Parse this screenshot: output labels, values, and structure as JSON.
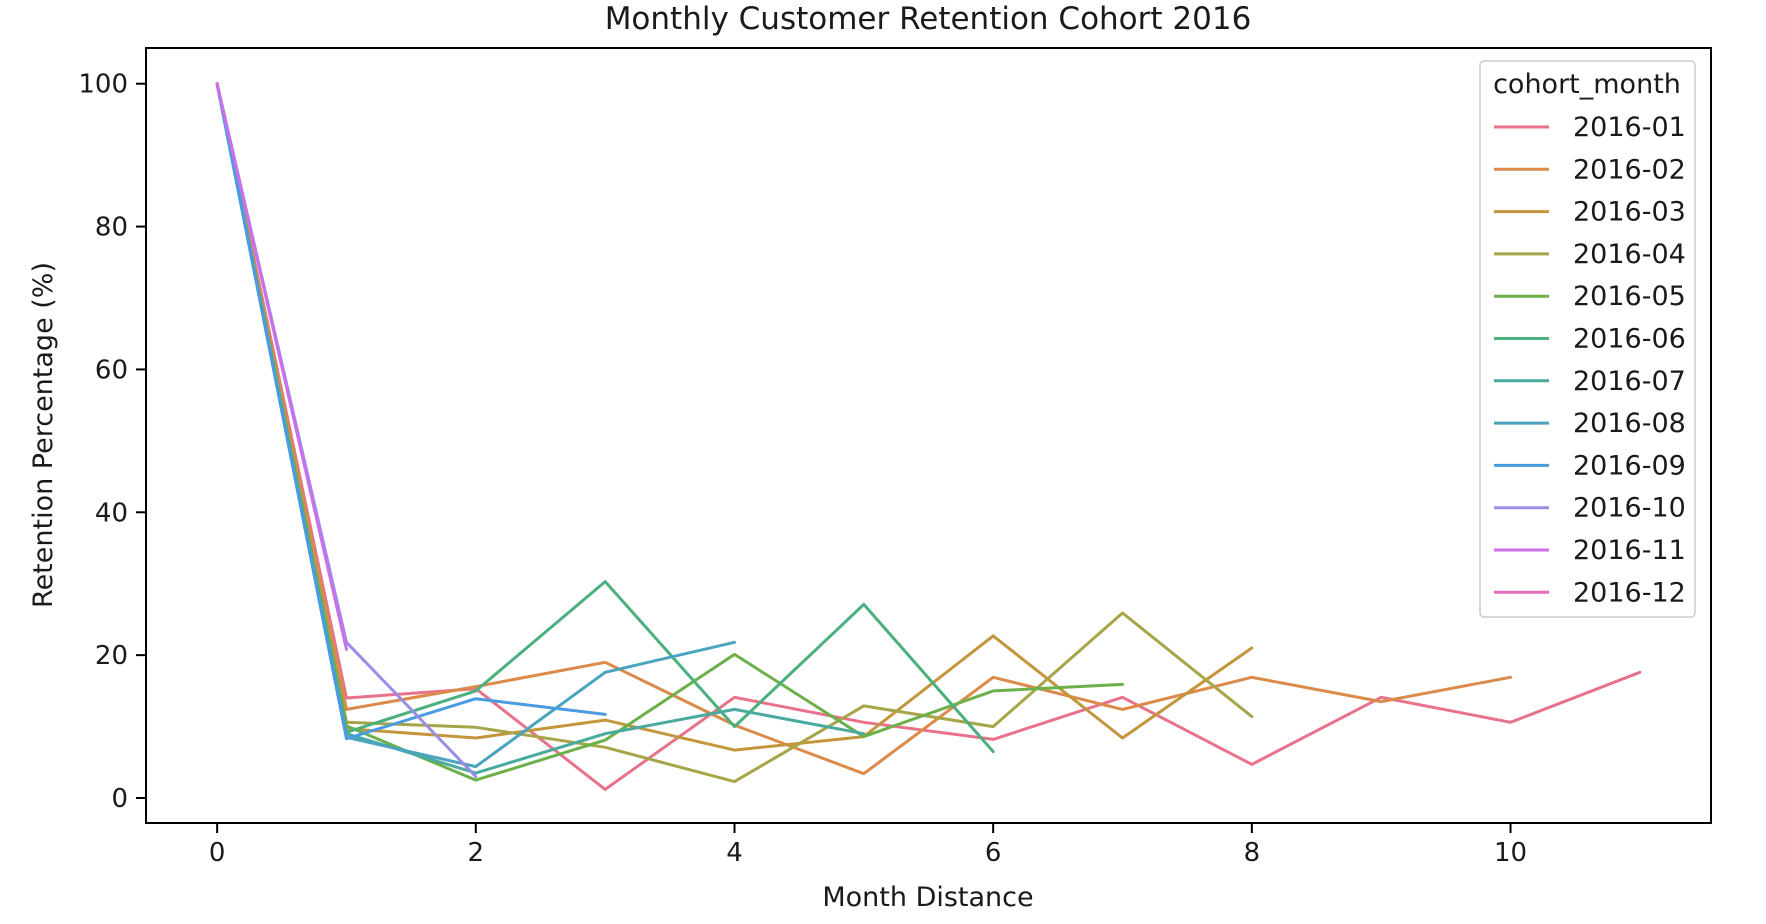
{
  "chart_data": {
    "type": "line",
    "title": "Monthly Customer Retention Cohort 2016",
    "xlabel": "Month Distance",
    "ylabel": "Retention Percentage (%)",
    "xlim": [
      -0.55,
      11.55
    ],
    "ylim": [
      -3.5,
      105
    ],
    "xticks": [
      "0",
      "2",
      "4",
      "6",
      "8",
      "10"
    ],
    "yticks": [
      "0",
      "20",
      "40",
      "60",
      "80",
      "100"
    ],
    "grid": false,
    "legend": {
      "title": "cohort_month",
      "position": "top-right"
    },
    "series": [
      {
        "name": "2016-01",
        "color": "#e8728a",
        "x": [
          0,
          1,
          2,
          3,
          4,
          5,
          6,
          7,
          8,
          9,
          10,
          11
        ],
        "y": [
          100,
          14,
          15.3,
          1.2,
          14.1,
          10.6,
          8.2,
          14.1,
          4.7,
          14.1,
          10.6,
          17.6
        ]
      },
      {
        "name": "2016-02",
        "color": "#db8a4a",
        "x": [
          0,
          1,
          2,
          3,
          4,
          5,
          6,
          7,
          8,
          9,
          10
        ],
        "y": [
          100,
          12.4,
          15.6,
          19,
          10.2,
          3.4,
          16.9,
          12.4,
          16.9,
          13.5,
          16.9
        ]
      },
      {
        "name": "2016-03",
        "color": "#c4963c",
        "x": [
          0,
          1,
          2,
          3,
          4,
          5,
          6,
          7,
          8
        ],
        "y": [
          100,
          9.7,
          8.4,
          10.9,
          6.7,
          8.6,
          22.7,
          8.4,
          21
        ]
      },
      {
        "name": "2016-04",
        "color": "#a7a548",
        "x": [
          0,
          1,
          2,
          3,
          4,
          5,
          6,
          7,
          8
        ],
        "y": [
          100,
          10.6,
          9.9,
          7.1,
          2.3,
          12.9,
          10,
          25.9,
          11.4
        ]
      },
      {
        "name": "2016-05",
        "color": "#6cb04a",
        "x": [
          0,
          1,
          2,
          3,
          4,
          5,
          6,
          7
        ],
        "y": [
          100,
          10.1,
          2.5,
          8.1,
          20.1,
          8.6,
          15,
          15.9
        ]
      },
      {
        "name": "2016-06",
        "color": "#49b07e",
        "x": [
          0,
          1,
          2,
          3,
          4,
          5,
          6
        ],
        "y": [
          100,
          9.2,
          15,
          30.3,
          10,
          27.1,
          6.5
        ]
      },
      {
        "name": "2016-07",
        "color": "#4aaa9e",
        "x": [
          0,
          1,
          2,
          3,
          4,
          5
        ],
        "y": [
          100,
          9,
          3.5,
          9,
          12.4,
          9
        ]
      },
      {
        "name": "2016-08",
        "color": "#4aa4bf",
        "x": [
          0,
          1,
          2,
          3,
          4
        ],
        "y": [
          100,
          8.5,
          4.4,
          17.6,
          21.8
        ]
      },
      {
        "name": "2016-09",
        "color": "#4b9be0",
        "x": [
          0,
          1,
          2,
          3
        ],
        "y": [
          100,
          8.3,
          13.9,
          11.7
        ]
      },
      {
        "name": "2016-10",
        "color": "#9a8de8",
        "x": [
          0,
          1,
          2
        ],
        "y": [
          100,
          21.8,
          3
        ]
      },
      {
        "name": "2016-11",
        "color": "#cc70ea",
        "x": [
          0,
          1
        ],
        "y": [
          100,
          20.8
        ]
      },
      {
        "name": "2016-12",
        "color": "#e66cc0",
        "x": [
          0
        ],
        "y": [
          100
        ]
      }
    ]
  }
}
